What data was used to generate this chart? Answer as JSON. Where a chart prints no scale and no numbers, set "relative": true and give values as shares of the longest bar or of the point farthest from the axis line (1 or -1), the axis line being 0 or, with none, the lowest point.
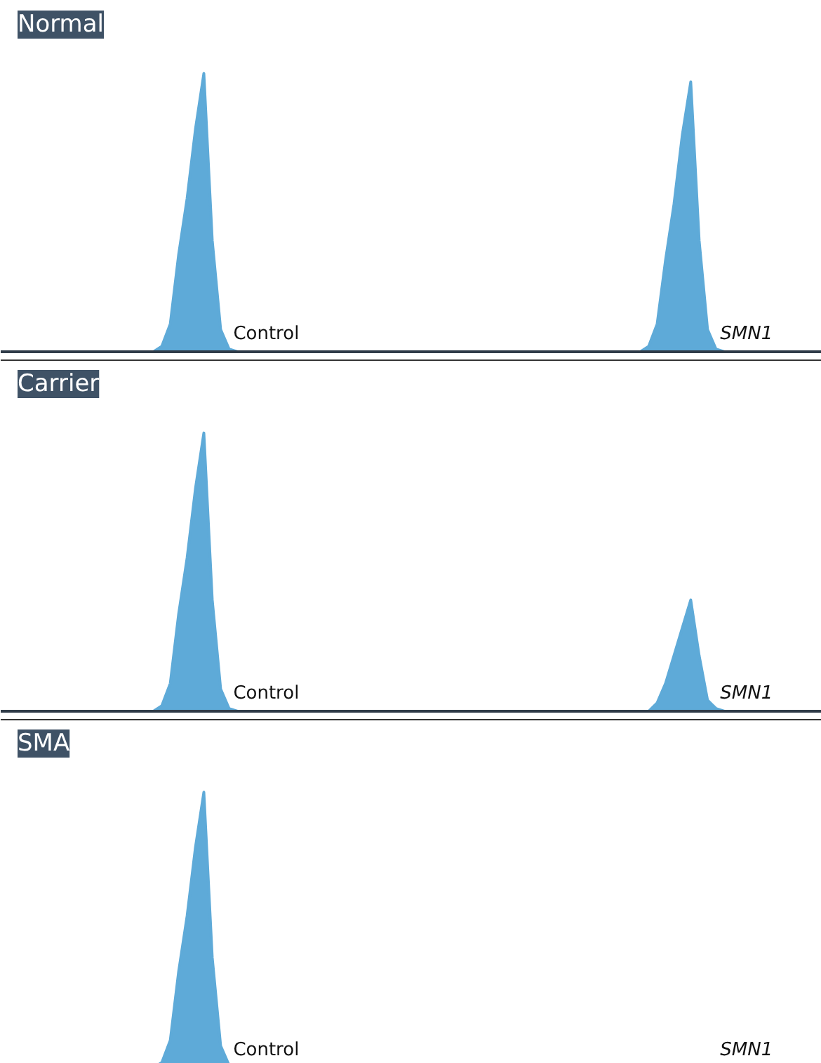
{
  "chart_data": [
    {
      "type": "area",
      "title": "Normal",
      "relative": true,
      "grid": false,
      "color": "#5eaad8",
      "categories": [
        null,
        null,
        null,
        null,
        null,
        null,
        null,
        null,
        null,
        null,
        null,
        null,
        null,
        null,
        null,
        null,
        null,
        null,
        null,
        null,
        null,
        null,
        null,
        null,
        null,
        null,
        null,
        null,
        null,
        null,
        null,
        null,
        null,
        null,
        null,
        null,
        null,
        null,
        null,
        null,
        null,
        null,
        null,
        null,
        null,
        null,
        null,
        null,
        null,
        null,
        null,
        null,
        null,
        null,
        null,
        null,
        null,
        null,
        null,
        null,
        null,
        null,
        null,
        null,
        null,
        null,
        null,
        null,
        null,
        null,
        null,
        null,
        null,
        null,
        null,
        null,
        null,
        null,
        null,
        null,
        null,
        null,
        null,
        null,
        null,
        null,
        null,
        null,
        null,
        null,
        null,
        null,
        null,
        null,
        null,
        null
      ],
      "values": [
        0,
        0,
        0,
        0,
        0,
        0,
        0,
        0,
        0,
        0,
        0,
        0,
        0,
        0,
        0,
        0,
        0,
        0.02,
        0.1,
        0.35,
        0.55,
        0.8,
        1,
        0.4,
        0.08,
        0.01,
        0,
        0,
        0,
        0,
        0,
        0,
        0,
        0,
        0,
        0,
        0,
        0,
        0,
        0,
        0,
        0,
        0,
        0,
        0,
        0,
        0,
        0,
        0,
        0,
        0,
        0,
        0,
        0,
        0,
        0,
        0,
        0,
        0,
        0,
        0,
        0,
        0,
        0,
        0,
        0,
        0,
        0,
        0,
        0,
        0,
        0,
        0,
        0,
        0,
        0.02,
        0.1,
        0.33,
        0.53,
        0.78,
        0.97,
        0.4,
        0.08,
        0.01,
        0,
        0,
        0,
        0,
        0,
        0,
        0,
        0,
        0,
        0,
        0,
        0
      ],
      "annotations": [
        "Control",
        "SMN1"
      ]
    },
    {
      "type": "area",
      "title": "Carrier",
      "relative": true,
      "grid": false,
      "color": "#5eaad8",
      "categories": [
        null,
        null,
        null,
        null,
        null,
        null,
        null,
        null,
        null,
        null,
        null,
        null,
        null,
        null,
        null,
        null,
        null,
        null,
        null,
        null,
        null,
        null,
        null,
        null,
        null,
        null,
        null,
        null,
        null,
        null,
        null,
        null,
        null,
        null,
        null,
        null,
        null,
        null,
        null,
        null,
        null,
        null,
        null,
        null,
        null,
        null,
        null,
        null,
        null,
        null,
        null,
        null,
        null,
        null,
        null,
        null,
        null,
        null,
        null,
        null,
        null,
        null,
        null,
        null,
        null,
        null,
        null,
        null,
        null,
        null,
        null,
        null,
        null,
        null,
        null,
        null,
        null,
        null,
        null,
        null,
        null,
        null,
        null,
        null,
        null,
        null,
        null,
        null,
        null,
        null,
        null,
        null,
        null,
        null,
        null,
        null
      ],
      "values": [
        0,
        0,
        0,
        0,
        0,
        0,
        0,
        0,
        0,
        0,
        0,
        0,
        0,
        0,
        0,
        0,
        0,
        0.02,
        0.1,
        0.35,
        0.55,
        0.8,
        1,
        0.4,
        0.08,
        0.01,
        0,
        0,
        0,
        0,
        0,
        0,
        0,
        0,
        0,
        0,
        0,
        0,
        0,
        0,
        0,
        0,
        0,
        0,
        0,
        0,
        0,
        0,
        0,
        0,
        0,
        0,
        0,
        0,
        0,
        0,
        0,
        0,
        0,
        0,
        0,
        0,
        0,
        0,
        0,
        0,
        0,
        0,
        0,
        0,
        0,
        0,
        0,
        0,
        0,
        0,
        0.03,
        0.1,
        0.2,
        0.3,
        0.4,
        0.2,
        0.04,
        0.01,
        0,
        0,
        0,
        0,
        0,
        0,
        0,
        0,
        0,
        0,
        0,
        0
      ],
      "annotations": [
        "Control",
        "SMN1"
      ]
    },
    {
      "type": "area",
      "title": "SMA",
      "relative": true,
      "grid": false,
      "color": "#5eaad8",
      "categories": [
        null,
        null,
        null,
        null,
        null,
        null,
        null,
        null,
        null,
        null,
        null,
        null,
        null,
        null,
        null,
        null,
        null,
        null,
        null,
        null,
        null,
        null,
        null,
        null,
        null,
        null,
        null,
        null,
        null,
        null,
        null,
        null,
        null,
        null,
        null,
        null,
        null,
        null,
        null,
        null,
        null,
        null,
        null,
        null,
        null,
        null,
        null,
        null,
        null,
        null,
        null,
        null,
        null,
        null,
        null,
        null,
        null,
        null,
        null,
        null,
        null,
        null,
        null,
        null,
        null,
        null,
        null,
        null,
        null,
        null,
        null,
        null,
        null,
        null,
        null,
        null,
        null,
        null,
        null,
        null,
        null,
        null,
        null,
        null,
        null,
        null,
        null,
        null,
        null,
        null,
        null,
        null,
        null,
        null,
        null,
        null
      ],
      "values": [
        0,
        0,
        0,
        0,
        0,
        0,
        0,
        0,
        0,
        0,
        0,
        0,
        0,
        0,
        0,
        0,
        0,
        0.02,
        0.1,
        0.35,
        0.55,
        0.8,
        1,
        0.4,
        0.08,
        0.01,
        0,
        0,
        0,
        0,
        0,
        0,
        0,
        0,
        0,
        0,
        0,
        0,
        0,
        0,
        0,
        0,
        0,
        0,
        0,
        0,
        0,
        0,
        0,
        0,
        0,
        0,
        0,
        0,
        0,
        0,
        0,
        0,
        0,
        0,
        0,
        0,
        0,
        0,
        0,
        0,
        0,
        0,
        0,
        0,
        0,
        0,
        0,
        0,
        0,
        0,
        0,
        0,
        0,
        0,
        0,
        0,
        0,
        0,
        0,
        0,
        0,
        0,
        0,
        0,
        0,
        0,
        0,
        0,
        0,
        0
      ],
      "annotations": [
        "Control",
        "SMN1"
      ]
    }
  ]
}
